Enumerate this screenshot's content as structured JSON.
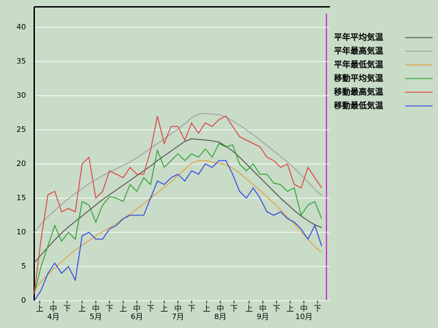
{
  "chart_data": {
    "type": "line",
    "x": [
      1,
      6,
      11,
      16,
      21,
      26,
      31,
      36,
      41,
      46,
      51,
      56,
      61,
      66,
      71,
      76,
      81,
      86,
      91,
      96,
      101,
      106,
      111,
      116,
      121,
      126,
      131,
      136,
      141,
      146,
      151,
      156,
      161,
      166,
      171,
      176,
      181,
      186,
      191,
      196,
      201,
      206,
      211
    ],
    "xlim": [
      1,
      215
    ],
    "xticks": [
      {
        "value": 5,
        "label": "上"
      },
      {
        "value": 15,
        "label": "中"
      },
      {
        "value": 25,
        "label": "下"
      },
      {
        "value": 36,
        "label": "上"
      },
      {
        "value": 46,
        "label": "中"
      },
      {
        "value": 56,
        "label": "下"
      },
      {
        "value": 66,
        "label": "上"
      },
      {
        "value": 76,
        "label": "中"
      },
      {
        "value": 86,
        "label": "下"
      },
      {
        "value": 96,
        "label": "上"
      },
      {
        "value": 106,
        "label": "中"
      },
      {
        "value": 116,
        "label": "下"
      },
      {
        "value": 127,
        "label": "上"
      },
      {
        "value": 137,
        "label": "中"
      },
      {
        "value": 147,
        "label": "下"
      },
      {
        "value": 158,
        "label": "上"
      },
      {
        "value": 168,
        "label": "中"
      },
      {
        "value": 178,
        "label": "下"
      },
      {
        "value": 188,
        "label": "上"
      },
      {
        "value": 198,
        "label": "中"
      },
      {
        "value": 208,
        "label": "下"
      }
    ],
    "month_labels": [
      {
        "value": 15,
        "label": "4月"
      },
      {
        "value": 46,
        "label": "5月"
      },
      {
        "value": 76,
        "label": "6月"
      },
      {
        "value": 106,
        "label": "7月"
      },
      {
        "value": 137,
        "label": "8月"
      },
      {
        "value": 168,
        "label": "9月"
      },
      {
        "value": 198,
        "label": "10月"
      }
    ],
    "ylim": [
      0,
      43
    ],
    "yticks": [
      0,
      5,
      10,
      15,
      20,
      25,
      30,
      35,
      40
    ],
    "grid": true,
    "legend": "top-right",
    "series": [
      {
        "name": "平年平均気温",
        "color": "#505050",
        "values": [
          5.5,
          6.7,
          7.8,
          8.9,
          9.9,
          10.8,
          11.6,
          12.4,
          13.2,
          14.0,
          14.8,
          15.5,
          16.2,
          16.9,
          17.6,
          18.3,
          19.0,
          19.7,
          20.5,
          21.2,
          21.9,
          22.6,
          23.3,
          23.7,
          23.6,
          23.5,
          23.4,
          23.2,
          22.6,
          21.9,
          21.0,
          20.0,
          19.0,
          18.0,
          17.0,
          16.0,
          15.0,
          14.1,
          13.2,
          12.4,
          11.7,
          11.1,
          10.7
        ]
      },
      {
        "name": "平年最高気温",
        "color": "#a0a0a0",
        "values": [
          10.0,
          11.2,
          12.3,
          13.2,
          14.1,
          14.9,
          15.7,
          16.4,
          17.1,
          17.7,
          18.3,
          18.8,
          19.3,
          19.8,
          20.3,
          20.9,
          21.6,
          22.3,
          23.0,
          23.7,
          24.4,
          25.1,
          25.9,
          26.8,
          27.3,
          27.4,
          27.3,
          27.2,
          26.9,
          26.3,
          25.7,
          25.0,
          24.3,
          23.5,
          22.7,
          21.9,
          21.1,
          20.3,
          19.4,
          18.4,
          17.4,
          16.3,
          15.4
        ]
      },
      {
        "name": "平年最低気温",
        "color": "#e0a040",
        "values": [
          1.5,
          2.8,
          3.8,
          4.8,
          5.7,
          6.6,
          7.4,
          8.1,
          8.8,
          9.5,
          10.1,
          10.7,
          11.3,
          12.0,
          12.7,
          13.4,
          14.2,
          15.0,
          15.8,
          16.6,
          17.4,
          18.3,
          19.2,
          20.1,
          20.5,
          20.5,
          20.3,
          20.1,
          19.9,
          19.4,
          18.7,
          17.8,
          17.0,
          16.1,
          15.2,
          14.3,
          13.3,
          12.2,
          11.2,
          10.1,
          9.0,
          7.9,
          7.1
        ]
      },
      {
        "name": "移動平均気温",
        "color": "#30a030",
        "values": [
          1,
          5,
          8,
          11,
          8.7,
          10,
          9,
          14.5,
          14,
          11.5,
          14,
          15.2,
          15,
          14.5,
          17,
          16,
          18,
          17,
          22,
          19.5,
          20.5,
          21.5,
          20.5,
          21.5,
          21,
          22.2,
          21,
          23,
          22.5,
          22.8,
          20,
          19,
          20,
          18.5,
          18.5,
          17.2,
          17,
          16,
          16.5,
          12.5,
          14,
          14.5,
          12
        ]
      },
      {
        "name": "移動最高気温",
        "color": "#e04040",
        "values": [
          1,
          9,
          15.5,
          16,
          13,
          13.5,
          13,
          20,
          21,
          15,
          16,
          19,
          18.5,
          18,
          19.5,
          18.5,
          18.5,
          22,
          27,
          23,
          25.5,
          25.5,
          23.5,
          26,
          24.5,
          26,
          25.5,
          26.5,
          27,
          25.5,
          24,
          23.5,
          23,
          22.5,
          21,
          20.5,
          19.5,
          20,
          17,
          16.5,
          19.5,
          18,
          16.5
        ]
      },
      {
        "name": "移動最低気温",
        "color": "#3040e0",
        "values": [
          0,
          1.5,
          4,
          5.5,
          4,
          5,
          3,
          9.5,
          10,
          9,
          9,
          10.5,
          11,
          12,
          12.5,
          12.5,
          12.5,
          15,
          17.5,
          17,
          18,
          18.5,
          17.5,
          19,
          18.5,
          20,
          19.5,
          20.5,
          20.5,
          18.5,
          16,
          15,
          16.5,
          15,
          13,
          12.5,
          13,
          12,
          11.5,
          10.5,
          9,
          11,
          8
        ]
      }
    ]
  }
}
